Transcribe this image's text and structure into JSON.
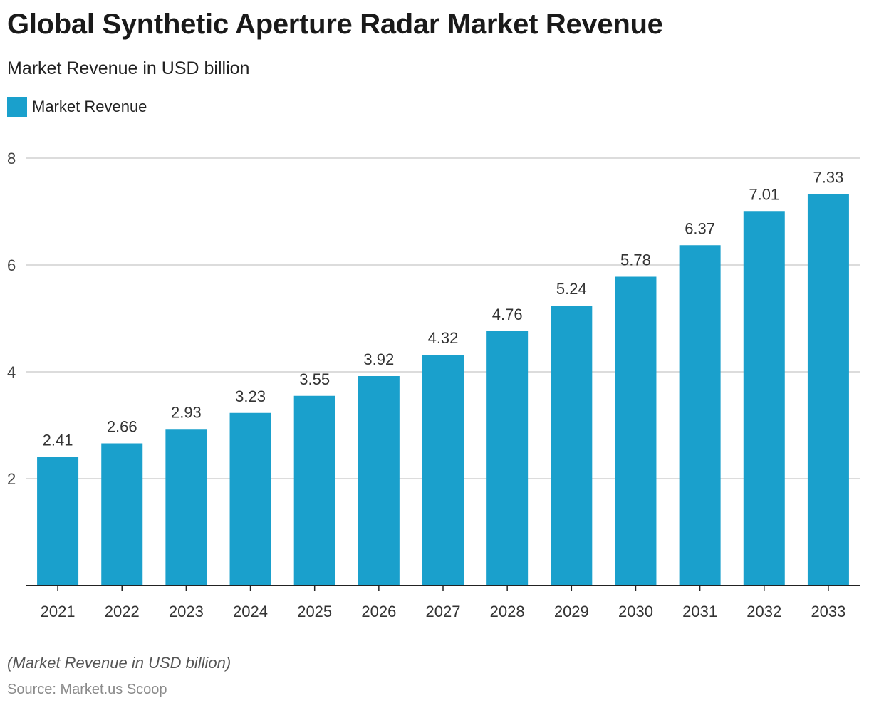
{
  "header": {
    "title": "Global Synthetic Aperture Radar Market Revenue",
    "subtitle": "Market Revenue in USD billion"
  },
  "legend": {
    "label": "Market Revenue",
    "color": "#1aa0cc"
  },
  "footer": {
    "note": "(Market Revenue in USD billion)",
    "source": "Source: Market.us Scoop"
  },
  "chart_data": {
    "type": "bar",
    "title": "Global Synthetic Aperture Radar Market Revenue",
    "subtitle": "Market Revenue in USD billion",
    "xlabel": "",
    "ylabel": "",
    "categories": [
      "2021",
      "2022",
      "2023",
      "2024",
      "2025",
      "2026",
      "2027",
      "2028",
      "2029",
      "2030",
      "2031",
      "2032",
      "2033"
    ],
    "series": [
      {
        "name": "Market Revenue",
        "values": [
          2.41,
          2.66,
          2.93,
          3.23,
          3.55,
          3.92,
          4.32,
          4.76,
          5.24,
          5.78,
          6.37,
          7.01,
          7.33
        ],
        "color": "#1aa0cc"
      }
    ],
    "ylim": [
      0,
      8
    ],
    "yticks": [
      2,
      4,
      6,
      8
    ],
    "grid": true,
    "legend_position": "top-left",
    "data_labels": true,
    "bar_color": "#1aa0cc",
    "grid_color": "#d0d0d0",
    "axis_color": "#222222"
  }
}
